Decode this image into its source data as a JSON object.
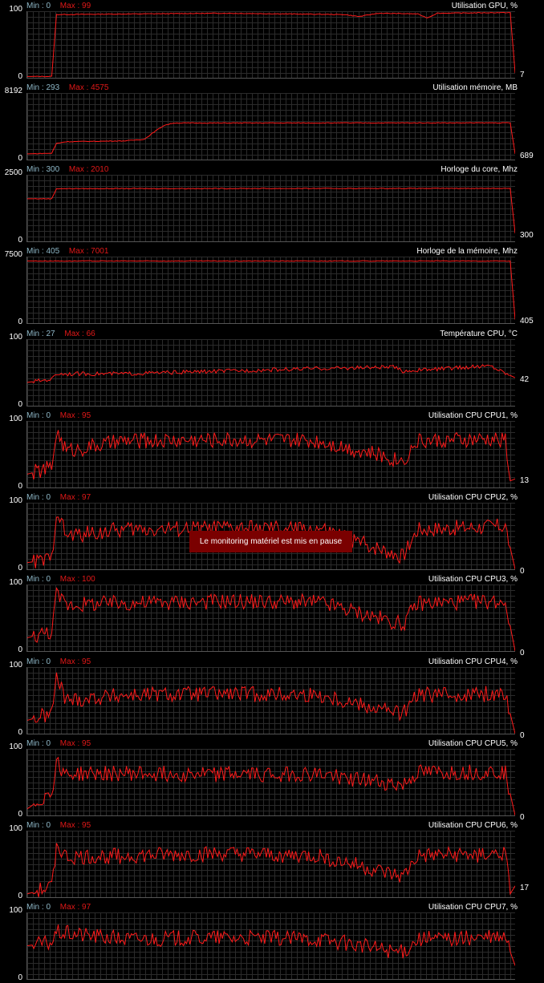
{
  "panels": [
    {
      "title": "Utilisation GPU, %",
      "min_label": "Min : 0",
      "max_label": "Max : 99",
      "y_max": "100",
      "y_min": "0",
      "current": "7",
      "chart_data": {
        "type": "line",
        "ylim": [
          0,
          100
        ],
        "points": [
          [
            0,
            2
          ],
          [
            5,
            2
          ],
          [
            6,
            95
          ],
          [
            40,
            97
          ],
          [
            65,
            95
          ],
          [
            68,
            92
          ],
          [
            72,
            97
          ],
          [
            80,
            96
          ],
          [
            82,
            90
          ],
          [
            84,
            97
          ],
          [
            99,
            98
          ],
          [
            100,
            7
          ]
        ]
      }
    },
    {
      "title": "Utilisation mémoire, MB",
      "min_label": "Min : 293",
      "max_label": "Max : 4575",
      "y_max": "8192",
      "y_min": "0",
      "current": "689",
      "chart_data": {
        "type": "line",
        "ylim": [
          0,
          8192
        ],
        "points": [
          [
            0,
            700
          ],
          [
            5,
            780
          ],
          [
            6,
            2000
          ],
          [
            8,
            2200
          ],
          [
            20,
            2300
          ],
          [
            24,
            2500
          ],
          [
            26,
            3400
          ],
          [
            28,
            4200
          ],
          [
            30,
            4500
          ],
          [
            99,
            4520
          ],
          [
            100,
            689
          ]
        ]
      }
    },
    {
      "title": "Horloge du core, Mhz",
      "min_label": "Min : 300",
      "max_label": "Max : 2010",
      "y_max": "2500",
      "y_min": "0",
      "current": "300",
      "chart_data": {
        "type": "line",
        "ylim": [
          0,
          2500
        ],
        "points": [
          [
            0,
            1600
          ],
          [
            5,
            1600
          ],
          [
            6,
            1980
          ],
          [
            99,
            1990
          ],
          [
            100,
            300
          ]
        ]
      }
    },
    {
      "title": "Horloge de la mémoire, Mhz",
      "min_label": "Min : 405",
      "max_label": "Max : 7001",
      "y_max": "7500",
      "y_min": "0",
      "current": "405",
      "chart_data": {
        "type": "line",
        "ylim": [
          0,
          7500
        ],
        "points": [
          [
            0,
            7000
          ],
          [
            99,
            7000
          ],
          [
            100,
            405
          ]
        ]
      }
    },
    {
      "title": "Température CPU, °C",
      "min_label": "Min : 27",
      "max_label": "Max : 66",
      "y_max": "100",
      "y_min": "0",
      "current": "42",
      "chart_data": {
        "type": "line",
        "ylim": [
          0,
          100
        ],
        "points": [
          [
            0,
            35
          ],
          [
            5,
            40
          ],
          [
            6,
            48
          ],
          [
            20,
            48
          ],
          [
            40,
            52
          ],
          [
            60,
            56
          ],
          [
            75,
            58
          ],
          [
            77,
            52
          ],
          [
            95,
            60
          ],
          [
            100,
            42
          ]
        ]
      }
    },
    {
      "title": "Utilisation CPU CPU1, %",
      "min_label": "Min : 0",
      "max_label": "Max : 95",
      "y_max": "100",
      "y_min": "0",
      "current": "13",
      "chart_data": {
        "type": "line",
        "ylim": [
          0,
          100
        ],
        "points": [
          [
            0,
            20
          ],
          [
            5,
            30
          ],
          [
            6,
            85
          ],
          [
            8,
            55
          ],
          [
            20,
            70
          ],
          [
            40,
            72
          ],
          [
            60,
            70
          ],
          [
            77,
            40
          ],
          [
            80,
            70
          ],
          [
            98,
            72
          ],
          [
            99,
            10
          ],
          [
            100,
            13
          ]
        ]
      }
    },
    {
      "title": "Utilisation CPU CPU2, %",
      "min_label": "Min : 0",
      "max_label": "Max : 97",
      "y_max": "100",
      "y_min": "0",
      "current": "0",
      "chart_data": {
        "type": "line",
        "ylim": [
          0,
          100
        ],
        "points": [
          [
            0,
            10
          ],
          [
            5,
            15
          ],
          [
            6,
            90
          ],
          [
            8,
            50
          ],
          [
            20,
            60
          ],
          [
            40,
            62
          ],
          [
            60,
            60
          ],
          [
            77,
            20
          ],
          [
            80,
            60
          ],
          [
            98,
            65
          ],
          [
            100,
            0
          ]
        ]
      }
    },
    {
      "title": "Utilisation CPU CPU3, %",
      "min_label": "Min : 0",
      "max_label": "Max : 100",
      "y_max": "100",
      "y_min": "0",
      "current": "0",
      "chart_data": {
        "type": "line",
        "ylim": [
          0,
          100
        ],
        "points": [
          [
            0,
            20
          ],
          [
            5,
            30
          ],
          [
            6,
            85
          ],
          [
            8,
            70
          ],
          [
            20,
            72
          ],
          [
            40,
            75
          ],
          [
            60,
            73
          ],
          [
            77,
            40
          ],
          [
            80,
            72
          ],
          [
            98,
            75
          ],
          [
            100,
            0
          ]
        ]
      }
    },
    {
      "title": "Utilisation CPU CPU4, %",
      "min_label": "Min : 0",
      "max_label": "Max : 95",
      "y_max": "100",
      "y_min": "0",
      "current": "0",
      "chart_data": {
        "type": "line",
        "ylim": [
          0,
          100
        ],
        "points": [
          [
            0,
            20
          ],
          [
            5,
            30
          ],
          [
            6,
            85
          ],
          [
            8,
            50
          ],
          [
            20,
            58
          ],
          [
            40,
            60
          ],
          [
            60,
            58
          ],
          [
            77,
            30
          ],
          [
            80,
            58
          ],
          [
            98,
            60
          ],
          [
            100,
            0
          ]
        ]
      }
    },
    {
      "title": "Utilisation CPU CPU5, %",
      "min_label": "Min : 0",
      "max_label": "Max : 95",
      "y_max": "100",
      "y_min": "0",
      "current": "0",
      "chart_data": {
        "type": "line",
        "ylim": [
          0,
          100
        ],
        "points": [
          [
            0,
            10
          ],
          [
            5,
            35
          ],
          [
            6,
            80
          ],
          [
            8,
            62
          ],
          [
            20,
            63
          ],
          [
            40,
            62
          ],
          [
            60,
            62
          ],
          [
            77,
            45
          ],
          [
            80,
            64
          ],
          [
            98,
            65
          ],
          [
            100,
            0
          ]
        ]
      }
    },
    {
      "title": "Utilisation CPU CPU6, %",
      "min_label": "Min : 0",
      "max_label": "Max : 95",
      "y_max": "100",
      "y_min": "0",
      "current": "17",
      "chart_data": {
        "type": "line",
        "ylim": [
          0,
          100
        ],
        "points": [
          [
            0,
            5
          ],
          [
            5,
            15
          ],
          [
            6,
            80
          ],
          [
            8,
            60
          ],
          [
            20,
            62
          ],
          [
            40,
            65
          ],
          [
            60,
            62
          ],
          [
            77,
            30
          ],
          [
            80,
            62
          ],
          [
            98,
            65
          ],
          [
            99,
            5
          ],
          [
            100,
            17
          ]
        ]
      }
    },
    {
      "title": "Utilisation CPU CPU7, %",
      "min_label": "Min : 0",
      "max_label": "Max : 97",
      "y_max": "100",
      "y_min": "0",
      "current": "",
      "chart_data": {
        "type": "line",
        "ylim": [
          0,
          100
        ],
        "points": [
          [
            0,
            50
          ],
          [
            5,
            55
          ],
          [
            6,
            70
          ],
          [
            20,
            60
          ],
          [
            40,
            62
          ],
          [
            60,
            60
          ],
          [
            77,
            40
          ],
          [
            80,
            60
          ],
          [
            98,
            62
          ],
          [
            100,
            20
          ]
        ]
      }
    }
  ],
  "pause_message": "Le monitoring matériel est mis en pause",
  "colors": {
    "line": "#ff1a1a",
    "grid": "#2b2b2b",
    "min_label": "#8fb8c8",
    "max_label": "#e01818",
    "pause_bg": "#7a0000"
  }
}
